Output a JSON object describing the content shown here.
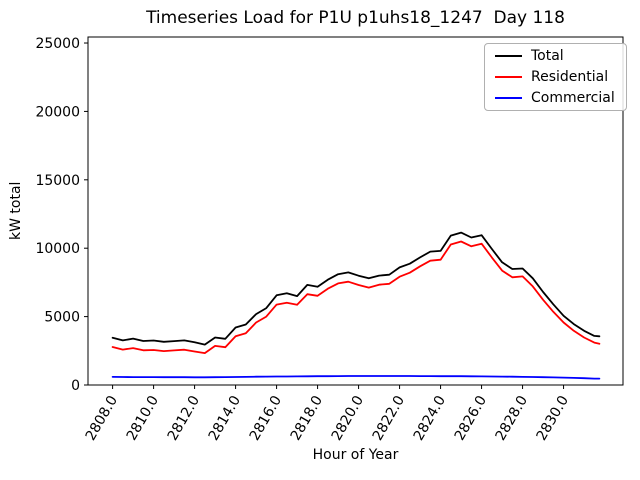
{
  "figure": {
    "background": "#ffffff"
  },
  "chart_data": {
    "type": "line",
    "title": "Timeseries Load for P1U p1uhs18_1247  Day 118",
    "xlabel": "Hour of Year",
    "ylabel": "kW total",
    "xlim": [
      2806.8,
      2832.9
    ],
    "ylim": [
      0,
      25440
    ],
    "grid": false,
    "legend_position": "upper right",
    "x_ticks": [
      2808,
      2810,
      2812,
      2814,
      2816,
      2818,
      2820,
      2822,
      2824,
      2826,
      2828,
      2830
    ],
    "x_tick_labels": [
      "2808.0",
      "2810.0",
      "2812.0",
      "2814.0",
      "2816.0",
      "2818.0",
      "2820.0",
      "2822.0",
      "2824.0",
      "2826.0",
      "2828.0",
      "2830.0"
    ],
    "y_ticks": [
      0,
      5000,
      10000,
      15000,
      20000,
      25000
    ],
    "y_tick_labels": [
      "0",
      "5000",
      "10000",
      "15000",
      "20000",
      "25000"
    ],
    "x": [
      2808.0,
      2808.5,
      2809.0,
      2809.5,
      2810.0,
      2810.5,
      2811.0,
      2811.5,
      2812.0,
      2812.5,
      2813.0,
      2813.5,
      2814.0,
      2814.5,
      2815.0,
      2815.5,
      2816.0,
      2816.5,
      2817.0,
      2817.5,
      2818.0,
      2818.5,
      2819.0,
      2819.5,
      2820.0,
      2820.5,
      2821.0,
      2821.5,
      2822.0,
      2822.5,
      2823.0,
      2823.5,
      2824.0,
      2824.5,
      2825.0,
      2825.5,
      2826.0,
      2826.5,
      2827.0,
      2827.5,
      2828.0,
      2828.5,
      2829.0,
      2829.5,
      2830.0,
      2830.5,
      2831.0,
      2831.5,
      2831.75
    ],
    "series": [
      {
        "name": "Total",
        "color": "#000000",
        "values": [
          3450,
          3260,
          3390,
          3220,
          3250,
          3160,
          3210,
          3260,
          3120,
          2950,
          3470,
          3380,
          4200,
          4420,
          5180,
          5620,
          6560,
          6700,
          6500,
          7320,
          7180,
          7700,
          8100,
          8230,
          7990,
          7800,
          8000,
          8060,
          8600,
          8870,
          9330,
          9750,
          9800,
          10920,
          11140,
          10780,
          10950,
          9950,
          8970,
          8480,
          8520,
          7800,
          6800,
          5900,
          5060,
          4450,
          3960,
          3590,
          3560
        ]
      },
      {
        "name": "Residential",
        "color": "#ff0000",
        "values": [
          2780,
          2590,
          2700,
          2540,
          2560,
          2480,
          2530,
          2580,
          2450,
          2330,
          2860,
          2760,
          3570,
          3790,
          4570,
          5000,
          5880,
          6010,
          5860,
          6640,
          6520,
          7040,
          7430,
          7550,
          7310,
          7120,
          7330,
          7400,
          7920,
          8210,
          8680,
          9090,
          9160,
          10270,
          10490,
          10140,
          10330,
          9330,
          8360,
          7870,
          7940,
          7210,
          6230,
          5350,
          4570,
          3960,
          3470,
          3100,
          3010
        ]
      },
      {
        "name": "Commercial",
        "color": "#0000ff",
        "values": [
          590,
          585,
          580,
          575,
          575,
          570,
          570,
          570,
          565,
          565,
          570,
          575,
          585,
          595,
          605,
          615,
          620,
          625,
          630,
          635,
          640,
          645,
          650,
          655,
          655,
          660,
          660,
          660,
          655,
          655,
          650,
          650,
          645,
          640,
          640,
          635,
          630,
          625,
          615,
          605,
          595,
          585,
          570,
          555,
          540,
          520,
          495,
          470,
          465
        ]
      }
    ]
  }
}
